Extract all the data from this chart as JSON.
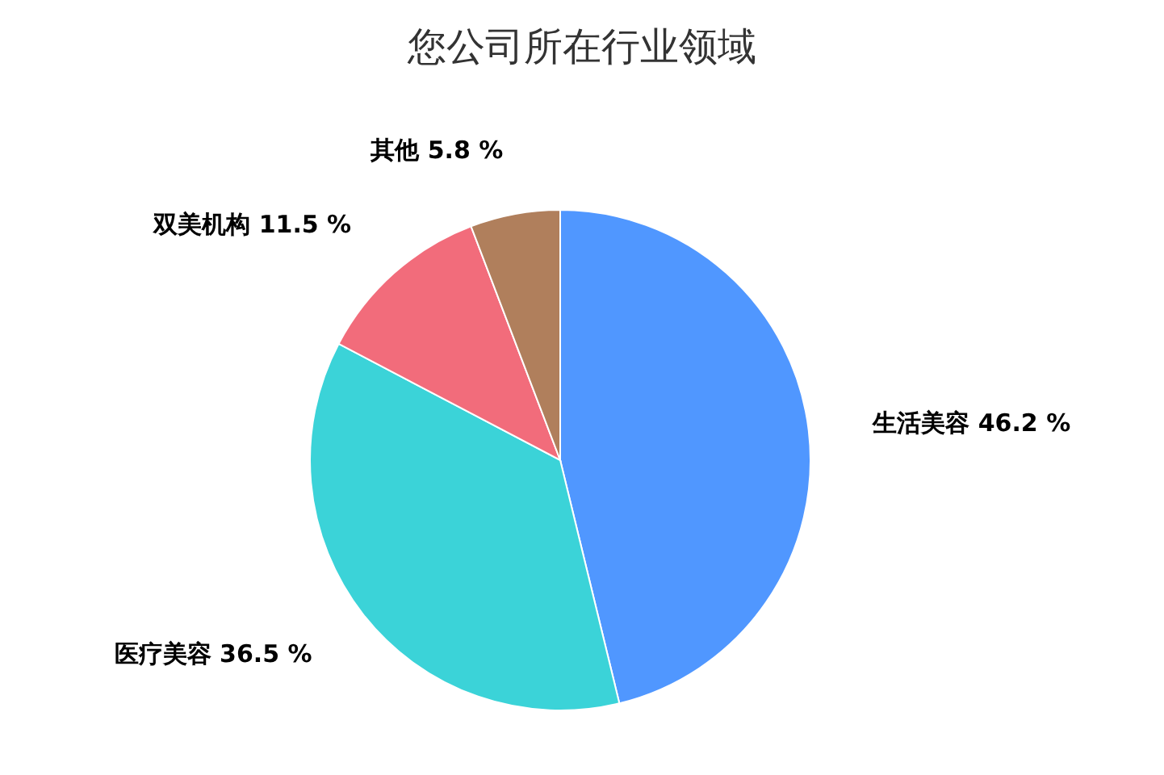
{
  "chart_data": {
    "type": "pie",
    "title": "您公司所在行业领域",
    "categories": [
      "生活美容",
      "医疗美容",
      "双美机构",
      "其他"
    ],
    "values": [
      46.2,
      36.5,
      11.5,
      5.8
    ],
    "value_labels": [
      "46.2 %",
      "36.5 %",
      "11.5 %",
      "5.8 %"
    ],
    "colors": [
      "#5097ff",
      "#3bd3d8",
      "#f26c7b",
      "#b07f5c"
    ]
  }
}
